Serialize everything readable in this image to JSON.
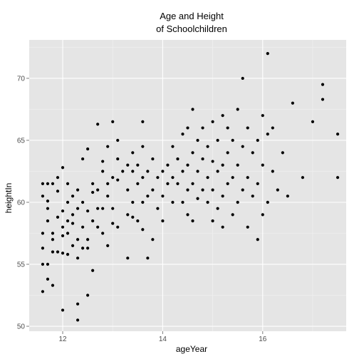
{
  "chart_data": {
    "type": "scatter",
    "title_line1": "Age and Height",
    "title_line2": "of Schoolchildren",
    "xlabel": "ageYear",
    "ylabel": "heightIn",
    "xlim": [
      11.33,
      17.67
    ],
    "ylim": [
      49.6,
      73.1
    ],
    "x_ticks": [
      12,
      14,
      16
    ],
    "y_ticks": [
      50,
      55,
      60,
      65,
      70
    ],
    "x_tick_labels": [
      "12",
      "14",
      "16"
    ],
    "y_tick_labels": [
      "50",
      "55",
      "60",
      "65",
      "70"
    ],
    "grid": true,
    "point_color": "#000000",
    "panel_color": "#e5e5e5",
    "grid_color": "#ffffff",
    "points": [
      [
        11.6,
        52.8
      ],
      [
        11.6,
        55.0
      ],
      [
        11.6,
        56.3
      ],
      [
        11.6,
        57.5
      ],
      [
        11.6,
        60.5
      ],
      [
        11.6,
        61.5
      ],
      [
        11.7,
        53.8
      ],
      [
        11.7,
        55.0
      ],
      [
        11.7,
        58.5
      ],
      [
        11.7,
        59.5
      ],
      [
        11.7,
        60.1
      ],
      [
        11.7,
        61.5
      ],
      [
        11.8,
        53.3
      ],
      [
        11.8,
        56.0
      ],
      [
        11.8,
        57.0
      ],
      [
        11.8,
        57.5
      ],
      [
        11.8,
        61.5
      ],
      [
        11.9,
        56.0
      ],
      [
        11.9,
        58.8
      ],
      [
        11.9,
        60.9
      ],
      [
        11.9,
        62.0
      ],
      [
        12.0,
        51.3
      ],
      [
        12.0,
        55.9
      ],
      [
        12.0,
        57.3
      ],
      [
        12.0,
        58.0
      ],
      [
        12.0,
        59.3
      ],
      [
        12.0,
        62.8
      ],
      [
        12.1,
        55.8
      ],
      [
        12.1,
        57.5
      ],
      [
        12.1,
        58.5
      ],
      [
        12.1,
        60.0
      ],
      [
        12.1,
        61.5
      ],
      [
        12.2,
        56.5
      ],
      [
        12.2,
        58.3
      ],
      [
        12.2,
        59.0
      ],
      [
        12.2,
        60.5
      ],
      [
        12.3,
        50.5
      ],
      [
        12.3,
        51.8
      ],
      [
        12.3,
        55.5
      ],
      [
        12.3,
        57.0
      ],
      [
        12.3,
        59.5
      ],
      [
        12.3,
        61.0
      ],
      [
        12.4,
        56.3
      ],
      [
        12.4,
        58.0
      ],
      [
        12.4,
        60.0
      ],
      [
        12.4,
        63.5
      ],
      [
        12.5,
        52.5
      ],
      [
        12.5,
        56.3
      ],
      [
        12.5,
        57.0
      ],
      [
        12.5,
        59.3
      ],
      [
        12.5,
        64.3
      ],
      [
        12.6,
        54.5
      ],
      [
        12.6,
        58.5
      ],
      [
        12.6,
        60.8
      ],
      [
        12.6,
        61.5
      ],
      [
        12.7,
        58.0
      ],
      [
        12.7,
        59.5
      ],
      [
        12.7,
        61.0
      ],
      [
        12.7,
        66.3
      ],
      [
        12.8,
        57.5
      ],
      [
        12.8,
        59.5
      ],
      [
        12.8,
        62.5
      ],
      [
        12.8,
        63.3
      ],
      [
        12.9,
        56.5
      ],
      [
        12.9,
        60.5
      ],
      [
        12.9,
        61.5
      ],
      [
        12.9,
        64.5
      ],
      [
        13.0,
        58.3
      ],
      [
        13.0,
        59.5
      ],
      [
        13.0,
        62.0
      ],
      [
        13.0,
        66.5
      ],
      [
        13.1,
        58.0
      ],
      [
        13.1,
        61.8
      ],
      [
        13.1,
        63.5
      ],
      [
        13.1,
        65.0
      ],
      [
        13.2,
        62.5
      ],
      [
        13.3,
        55.5
      ],
      [
        13.3,
        59.0
      ],
      [
        13.3,
        61.0
      ],
      [
        13.3,
        63.0
      ],
      [
        13.4,
        58.8
      ],
      [
        13.4,
        60.0
      ],
      [
        13.4,
        62.5
      ],
      [
        13.4,
        64.0
      ],
      [
        13.5,
        58.5
      ],
      [
        13.5,
        61.5
      ],
      [
        13.5,
        63.0
      ],
      [
        13.6,
        57.8
      ],
      [
        13.6,
        60.0
      ],
      [
        13.6,
        62.0
      ],
      [
        13.6,
        64.5
      ],
      [
        13.6,
        66.5
      ],
      [
        13.7,
        55.5
      ],
      [
        13.7,
        60.5
      ],
      [
        13.7,
        62.5
      ],
      [
        13.8,
        57.0
      ],
      [
        13.8,
        61.0
      ],
      [
        13.8,
        63.5
      ],
      [
        13.9,
        59.5
      ],
      [
        13.9,
        62.0
      ],
      [
        14.0,
        58.5
      ],
      [
        14.0,
        60.5
      ],
      [
        14.0,
        62.5
      ],
      [
        14.1,
        61.5
      ],
      [
        14.1,
        63.0
      ],
      [
        14.2,
        60.0
      ],
      [
        14.2,
        62.0
      ],
      [
        14.2,
        64.5
      ],
      [
        14.3,
        61.5
      ],
      [
        14.3,
        63.5
      ],
      [
        14.4,
        60.0
      ],
      [
        14.4,
        62.5
      ],
      [
        14.4,
        65.5
      ],
      [
        14.5,
        59.0
      ],
      [
        14.5,
        61.0
      ],
      [
        14.5,
        63.0
      ],
      [
        14.5,
        66.0
      ],
      [
        14.6,
        58.5
      ],
      [
        14.6,
        61.5
      ],
      [
        14.6,
        64.0
      ],
      [
        14.6,
        67.5
      ],
      [
        14.7,
        60.3
      ],
      [
        14.7,
        62.5
      ],
      [
        14.7,
        65.0
      ],
      [
        14.8,
        61.0
      ],
      [
        14.8,
        63.5
      ],
      [
        14.8,
        66.0
      ],
      [
        14.9,
        60.0
      ],
      [
        14.9,
        62.0
      ],
      [
        14.9,
        64.5
      ],
      [
        15.0,
        58.5
      ],
      [
        15.0,
        61.0
      ],
      [
        15.0,
        63.3
      ],
      [
        15.0,
        66.5
      ],
      [
        15.1,
        59.5
      ],
      [
        15.1,
        62.5
      ],
      [
        15.1,
        65.0
      ],
      [
        15.2,
        58.0
      ],
      [
        15.2,
        60.5
      ],
      [
        15.2,
        63.0
      ],
      [
        15.2,
        67.0
      ],
      [
        15.3,
        61.5
      ],
      [
        15.3,
        64.0
      ],
      [
        15.3,
        66.0
      ],
      [
        15.4,
        59.0
      ],
      [
        15.4,
        62.0
      ],
      [
        15.4,
        65.0
      ],
      [
        15.5,
        60.0
      ],
      [
        15.5,
        63.0
      ],
      [
        15.5,
        67.5
      ],
      [
        15.6,
        61.0
      ],
      [
        15.6,
        64.5
      ],
      [
        15.6,
        70.0
      ],
      [
        15.7,
        58.0
      ],
      [
        15.7,
        62.0
      ],
      [
        15.7,
        66.0
      ],
      [
        15.8,
        60.5
      ],
      [
        15.8,
        64.0
      ],
      [
        15.9,
        57.0
      ],
      [
        15.9,
        61.5
      ],
      [
        15.9,
        65.0
      ],
      [
        16.0,
        59.0
      ],
      [
        16.0,
        63.0
      ],
      [
        16.0,
        67.0
      ],
      [
        16.1,
        60.0
      ],
      [
        16.1,
        65.5
      ],
      [
        16.1,
        72.0
      ],
      [
        16.2,
        62.5
      ],
      [
        16.2,
        66.0
      ],
      [
        16.3,
        61.0
      ],
      [
        16.4,
        64.0
      ],
      [
        16.5,
        60.5
      ],
      [
        16.6,
        68.0
      ],
      [
        16.8,
        62.0
      ],
      [
        17.0,
        66.5
      ],
      [
        17.2,
        68.3
      ],
      [
        17.2,
        69.5
      ],
      [
        17.5,
        62.0
      ],
      [
        17.5,
        65.5
      ]
    ]
  }
}
